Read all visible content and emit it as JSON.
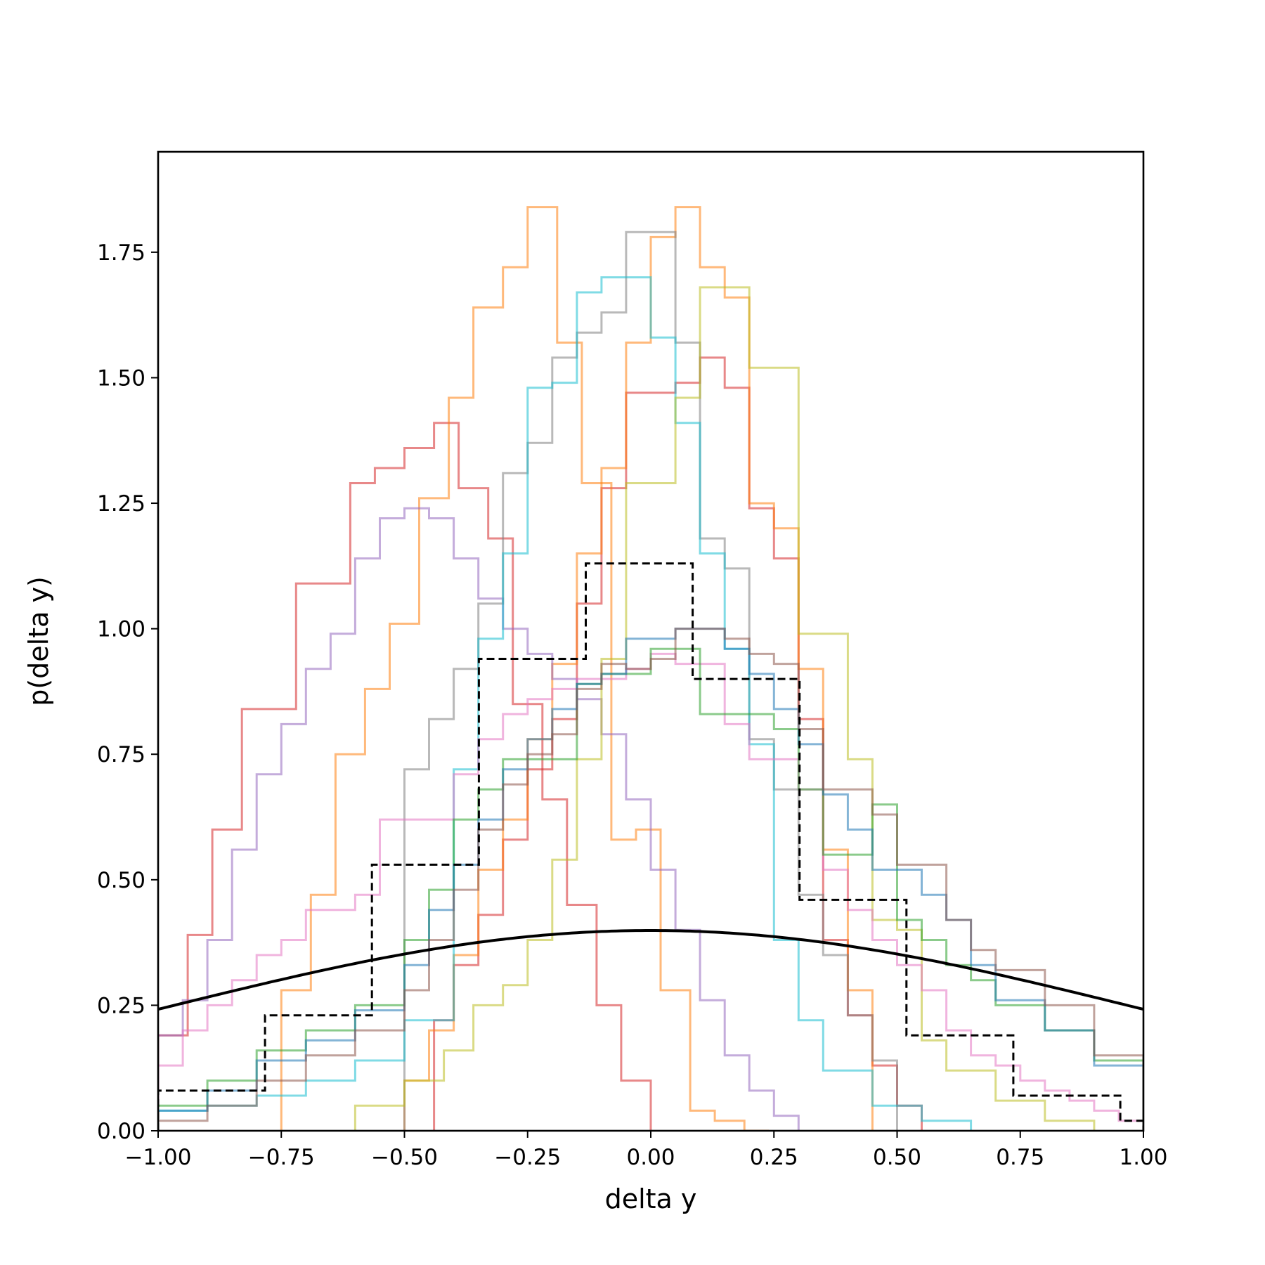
{
  "chart_data": {
    "type": "step-histogram",
    "xlabel": "delta y",
    "ylabel": "p(delta y)",
    "xlim": [
      -1.0,
      1.0
    ],
    "ylim": [
      0.0,
      1.95
    ],
    "grid": false,
    "xticks": [
      "−1.00",
      "−0.75",
      "−0.50",
      "−0.25",
      "0.00",
      "0.25",
      "0.50",
      "0.75",
      "1.00"
    ],
    "xtick_values": [
      -1.0,
      -0.75,
      -0.5,
      -0.25,
      0.0,
      0.25,
      0.5,
      0.75,
      1.0
    ],
    "yticks": [
      "0.00",
      "0.25",
      "0.50",
      "0.75",
      "1.00",
      "1.25",
      "1.50",
      "1.75"
    ],
    "ytick_values": [
      0.0,
      0.25,
      0.5,
      0.75,
      1.0,
      1.25,
      1.5,
      1.75
    ],
    "histograms": [
      {
        "color": "#d62728",
        "edges": [
          -1.0,
          -0.94,
          -0.89,
          -0.83,
          -0.78,
          -0.72,
          -0.67,
          -0.61,
          -0.56,
          -0.5,
          -0.44,
          -0.39,
          -0.33,
          -0.28,
          -0.22,
          -0.17,
          -0.11,
          -0.06,
          0.0
        ],
        "values": [
          0.19,
          0.39,
          0.6,
          0.84,
          0.84,
          1.09,
          1.09,
          1.29,
          1.32,
          1.36,
          1.41,
          1.28,
          1.18,
          0.85,
          0.66,
          0.45,
          0.25,
          0.1
        ]
      },
      {
        "color": "#d62728",
        "edges": [
          -0.44,
          -0.4,
          -0.35,
          -0.3,
          -0.25,
          -0.2,
          -0.15,
          -0.1,
          -0.05,
          0.0,
          0.05,
          0.1,
          0.15,
          0.2,
          0.25,
          0.3,
          0.35,
          0.4,
          0.45,
          0.5,
          0.55
        ],
        "values": [
          0.22,
          0.33,
          0.43,
          0.58,
          0.72,
          0.82,
          1.05,
          1.28,
          1.47,
          1.47,
          1.49,
          1.54,
          1.48,
          1.24,
          1.14,
          0.82,
          0.38,
          0.23,
          0.13,
          0.05
        ]
      },
      {
        "color": "#ff7f0e",
        "edges": [
          -0.75,
          -0.69,
          -0.64,
          -0.58,
          -0.53,
          -0.47,
          -0.41,
          -0.36,
          -0.3,
          -0.25,
          -0.19,
          -0.14,
          -0.08,
          -0.03,
          0.02,
          0.08,
          0.13,
          0.19,
          0.24
        ],
        "values": [
          0.28,
          0.47,
          0.75,
          0.88,
          1.01,
          1.26,
          1.46,
          1.64,
          1.72,
          1.84,
          1.57,
          1.29,
          0.58,
          0.6,
          0.28,
          0.04,
          0.02,
          0.0
        ]
      },
      {
        "color": "#ff7f0e",
        "edges": [
          -0.5,
          -0.45,
          -0.4,
          -0.35,
          -0.3,
          -0.25,
          -0.2,
          -0.15,
          -0.1,
          -0.05,
          0.0,
          0.05,
          0.1,
          0.15,
          0.2,
          0.25,
          0.3,
          0.35,
          0.4,
          0.45
        ],
        "values": [
          0.1,
          0.2,
          0.35,
          0.52,
          0.62,
          0.78,
          0.93,
          1.15,
          1.32,
          1.57,
          1.78,
          1.84,
          1.72,
          1.66,
          1.25,
          1.2,
          0.92,
          0.56,
          0.28
        ]
      },
      {
        "color": "#9467bd",
        "edges": [
          -1.0,
          -0.95,
          -0.9,
          -0.85,
          -0.8,
          -0.75,
          -0.7,
          -0.65,
          -0.6,
          -0.55,
          -0.5,
          -0.45,
          -0.4,
          -0.35,
          -0.3,
          -0.25,
          -0.2,
          -0.15,
          -0.1,
          -0.05,
          0.0,
          0.05,
          0.1,
          0.15,
          0.2,
          0.25,
          0.3
        ],
        "values": [
          0.19,
          0.26,
          0.38,
          0.56,
          0.71,
          0.81,
          0.92,
          0.99,
          1.14,
          1.22,
          1.24,
          1.22,
          1.14,
          1.06,
          1.0,
          0.95,
          0.9,
          0.86,
          0.79,
          0.66,
          0.52,
          0.4,
          0.26,
          0.15,
          0.08,
          0.03
        ]
      },
      {
        "color": "#7f7f7f",
        "edges": [
          -0.5,
          -0.45,
          -0.4,
          -0.35,
          -0.3,
          -0.25,
          -0.2,
          -0.15,
          -0.1,
          -0.05,
          0.0,
          0.05,
          0.1,
          0.15,
          0.2,
          0.25,
          0.3,
          0.35,
          0.4,
          0.45,
          0.5
        ],
        "values": [
          0.72,
          0.82,
          0.92,
          1.05,
          1.31,
          1.37,
          1.54,
          1.59,
          1.63,
          1.79,
          1.79,
          1.57,
          1.18,
          1.12,
          0.78,
          0.68,
          0.47,
          0.35,
          0.23,
          0.14
        ]
      },
      {
        "color": "#17becf",
        "edges": [
          -1.0,
          -0.9,
          -0.8,
          -0.7,
          -0.6,
          -0.5,
          -0.4,
          -0.35,
          -0.3,
          -0.25,
          -0.2,
          -0.15,
          -0.1,
          -0.05,
          0.0,
          0.05,
          0.1,
          0.15,
          0.2,
          0.25,
          0.3,
          0.35,
          0.45,
          0.55,
          0.65
        ],
        "values": [
          0.04,
          0.05,
          0.07,
          0.1,
          0.14,
          0.22,
          0.72,
          0.98,
          1.15,
          1.48,
          1.49,
          1.67,
          1.7,
          1.7,
          1.58,
          1.41,
          1.15,
          0.96,
          0.77,
          0.38,
          0.22,
          0.12,
          0.05,
          0.02
        ]
      },
      {
        "color": "#bcbd22",
        "edges": [
          -0.6,
          -0.5,
          -0.42,
          -0.36,
          -0.3,
          -0.25,
          -0.2,
          -0.15,
          -0.1,
          -0.05,
          0.0,
          0.05,
          0.1,
          0.15,
          0.2,
          0.25,
          0.3,
          0.35,
          0.4,
          0.45,
          0.5,
          0.55,
          0.6,
          0.7,
          0.8,
          0.9
        ],
        "values": [
          0.05,
          0.1,
          0.16,
          0.25,
          0.29,
          0.38,
          0.54,
          0.74,
          0.94,
          1.29,
          1.29,
          1.46,
          1.68,
          1.68,
          1.52,
          1.52,
          0.99,
          0.99,
          0.74,
          0.42,
          0.4,
          0.18,
          0.12,
          0.06,
          0.02
        ]
      },
      {
        "color": "#e377c2",
        "edges": [
          -1.0,
          -0.95,
          -0.9,
          -0.85,
          -0.8,
          -0.75,
          -0.7,
          -0.65,
          -0.6,
          -0.55,
          -0.5,
          -0.45,
          -0.4,
          -0.35,
          -0.3,
          -0.25,
          -0.2,
          -0.15,
          -0.1,
          -0.05,
          0.0,
          0.05,
          0.1,
          0.15,
          0.2,
          0.25,
          0.3,
          0.35,
          0.4,
          0.45,
          0.5,
          0.55,
          0.6,
          0.65,
          0.7,
          0.75,
          0.8,
          0.85,
          0.9,
          0.95,
          1.0
        ],
        "values": [
          0.13,
          0.2,
          0.25,
          0.3,
          0.35,
          0.38,
          0.44,
          0.44,
          0.47,
          0.62,
          0.62,
          0.62,
          0.71,
          0.78,
          0.83,
          0.86,
          0.88,
          0.9,
          0.9,
          0.92,
          0.95,
          0.93,
          0.93,
          0.81,
          0.74,
          0.74,
          0.68,
          0.52,
          0.44,
          0.38,
          0.33,
          0.28,
          0.2,
          0.15,
          0.13,
          0.1,
          0.08,
          0.06,
          0.04,
          0.02
        ]
      },
      {
        "color": "#2ca02c",
        "edges": [
          -1.0,
          -0.9,
          -0.8,
          -0.7,
          -0.6,
          -0.5,
          -0.45,
          -0.4,
          -0.35,
          -0.3,
          -0.25,
          -0.2,
          -0.15,
          -0.1,
          -0.05,
          0.0,
          0.05,
          0.1,
          0.15,
          0.2,
          0.25,
          0.3,
          0.35,
          0.4,
          0.45,
          0.5,
          0.55,
          0.6,
          0.65,
          0.7,
          0.8,
          0.9,
          1.0
        ],
        "values": [
          0.05,
          0.1,
          0.16,
          0.2,
          0.25,
          0.38,
          0.48,
          0.62,
          0.68,
          0.74,
          0.74,
          0.74,
          0.89,
          0.91,
          0.91,
          0.96,
          0.96,
          0.83,
          0.83,
          0.83,
          0.8,
          0.68,
          0.55,
          0.55,
          0.65,
          0.42,
          0.38,
          0.33,
          0.3,
          0.25,
          0.2,
          0.14
        ]
      },
      {
        "color": "#1f77b4",
        "edges": [
          -1.0,
          -0.9,
          -0.8,
          -0.7,
          -0.6,
          -0.5,
          -0.45,
          -0.4,
          -0.35,
          -0.3,
          -0.25,
          -0.2,
          -0.15,
          -0.1,
          -0.05,
          0.0,
          0.05,
          0.1,
          0.15,
          0.2,
          0.25,
          0.3,
          0.35,
          0.4,
          0.45,
          0.5,
          0.55,
          0.6,
          0.65,
          0.7,
          0.8,
          0.9,
          1.0
        ],
        "values": [
          0.04,
          0.08,
          0.14,
          0.18,
          0.24,
          0.33,
          0.44,
          0.53,
          0.62,
          0.72,
          0.78,
          0.84,
          0.89,
          0.91,
          0.98,
          0.98,
          1.0,
          1.0,
          0.96,
          0.91,
          0.84,
          0.77,
          0.67,
          0.6,
          0.52,
          0.52,
          0.47,
          0.42,
          0.33,
          0.26,
          0.2,
          0.13
        ]
      },
      {
        "color": "#8c564b",
        "edges": [
          -1.0,
          -0.9,
          -0.8,
          -0.7,
          -0.6,
          -0.5,
          -0.45,
          -0.4,
          -0.35,
          -0.3,
          -0.25,
          -0.2,
          -0.15,
          -0.1,
          -0.05,
          0.0,
          0.05,
          0.1,
          0.15,
          0.2,
          0.25,
          0.3,
          0.35,
          0.4,
          0.45,
          0.5,
          0.55,
          0.6,
          0.65,
          0.7,
          0.8,
          0.9,
          1.0
        ],
        "values": [
          0.02,
          0.05,
          0.1,
          0.15,
          0.2,
          0.28,
          0.38,
          0.48,
          0.6,
          0.69,
          0.75,
          0.79,
          0.88,
          0.93,
          0.92,
          0.94,
          1.0,
          1.0,
          0.98,
          0.95,
          0.93,
          0.8,
          0.68,
          0.68,
          0.63,
          0.53,
          0.53,
          0.42,
          0.36,
          0.32,
          0.25,
          0.15
        ]
      }
    ],
    "dashed_histogram": {
      "color": "#000000",
      "edges": [
        -1.0,
        -0.783,
        -0.566,
        -0.349,
        -0.132,
        0.085,
        0.302,
        0.519,
        0.736,
        0.953,
        1.0
      ],
      "values": [
        0.08,
        0.23,
        0.53,
        0.94,
        1.13,
        0.9,
        0.46,
        0.19,
        0.07,
        0.02
      ]
    },
    "curve": {
      "color": "#000000",
      "description_type": "normal pdf",
      "mean": 0.0,
      "std": 1.0
    }
  }
}
